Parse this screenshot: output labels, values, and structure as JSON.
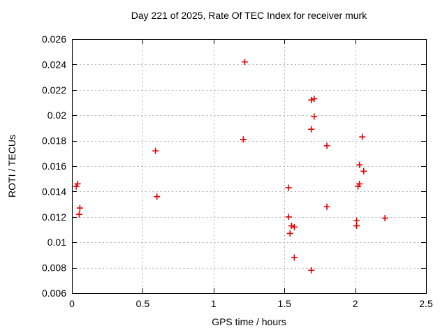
{
  "chart_data": {
    "type": "scatter",
    "title": "Day 221 of 2025, Rate Of TEC Index for receiver murk",
    "xlabel": "GPS time / hours",
    "ylabel": "ROTI / TECUs",
    "xlim": [
      0,
      2.5
    ],
    "ylim": [
      0.006,
      0.026
    ],
    "xticks": [
      0,
      0.5,
      1,
      1.5,
      2,
      2.5
    ],
    "xtick_labels": [
      "0",
      "0.5",
      "1",
      "1.5",
      "2",
      "2.5"
    ],
    "yticks": [
      0.006,
      0.008,
      0.01,
      0.012,
      0.014,
      0.016,
      0.018,
      0.02,
      0.022,
      0.024,
      0.026
    ],
    "ytick_labels": [
      "0.006",
      "0.008",
      "0.01",
      "0.012",
      "0.014",
      "0.016",
      "0.018",
      "0.02",
      "0.022",
      "0.024",
      "0.026"
    ],
    "grid": true,
    "legend_position": "none",
    "marker": "plus",
    "colors": {
      "marker": "#e00000",
      "grid": "#b0b0b0",
      "axis": "#000000",
      "text": "#000000",
      "background": "#ffffff"
    },
    "points": [
      [
        0.03,
        0.0144
      ],
      [
        0.04,
        0.0146
      ],
      [
        0.056,
        0.0127
      ],
      [
        0.051,
        0.0122
      ],
      [
        0.59,
        0.0172
      ],
      [
        0.6,
        0.0136
      ],
      [
        1.21,
        0.0181
      ],
      [
        1.22,
        0.0242
      ],
      [
        1.53,
        0.0143
      ],
      [
        1.53,
        0.012
      ],
      [
        1.55,
        0.0113
      ],
      [
        1.57,
        0.0112
      ],
      [
        1.54,
        0.0107
      ],
      [
        1.57,
        0.0088
      ],
      [
        1.69,
        0.0212
      ],
      [
        1.71,
        0.0213
      ],
      [
        1.71,
        0.0199
      ],
      [
        1.69,
        0.0189
      ],
      [
        1.69,
        0.0078
      ],
      [
        1.8,
        0.0176
      ],
      [
        1.8,
        0.0128
      ],
      [
        2.05,
        0.0183
      ],
      [
        2.03,
        0.0161
      ],
      [
        2.06,
        0.0156
      ],
      [
        2.03,
        0.0146
      ],
      [
        2.02,
        0.0144
      ],
      [
        2.01,
        0.0117
      ],
      [
        2.01,
        0.0113
      ],
      [
        2.21,
        0.0119
      ]
    ]
  }
}
